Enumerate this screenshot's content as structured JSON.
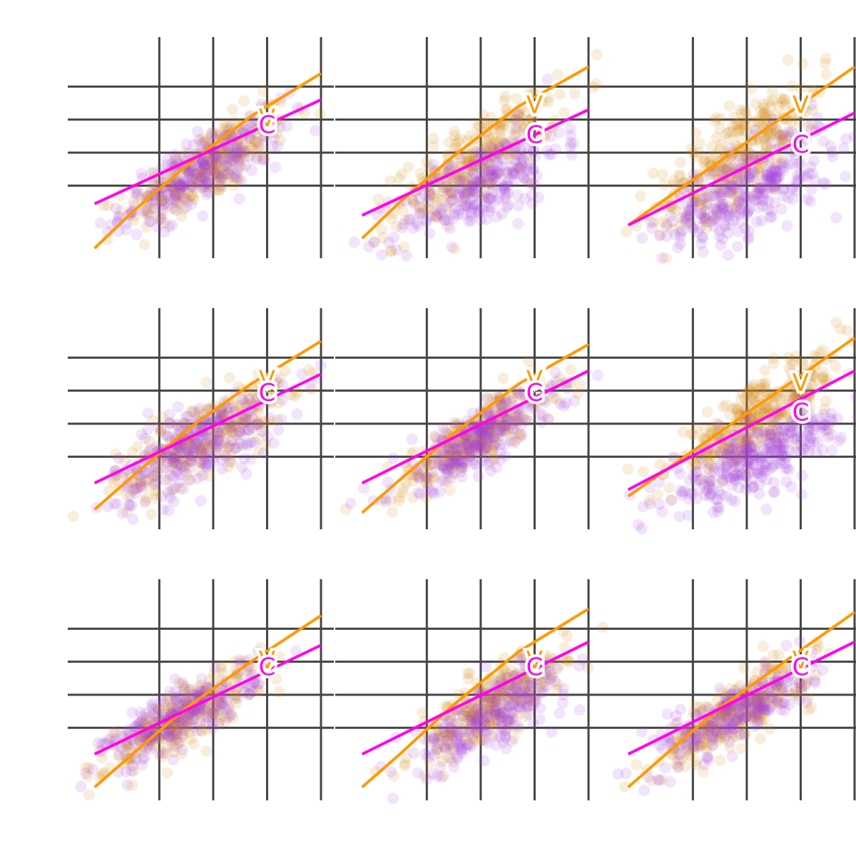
{
  "chart_data": {
    "type": "scatter",
    "layout": "3x3 facet grid",
    "title": "",
    "xlabel": "",
    "ylabel": "",
    "grid": true,
    "legend": "none",
    "xlim": [
      -1.5,
      3.0
    ],
    "ylim": [
      -2.2,
      4.5
    ],
    "x_grid": [
      0,
      1,
      2,
      3
    ],
    "y_grid": [
      0,
      1,
      2,
      3
    ],
    "colors": {
      "series_v_points": "#d4870b",
      "series_c_points": "#a040dc",
      "series_v_line": "#ff9900",
      "series_c_line": "#ff00ee",
      "grid": "#444444"
    },
    "series_keys": [
      "v",
      "c"
    ],
    "panels": [
      {
        "v": {
          "mean_x": 0.9,
          "slope_points": 0.95,
          "intercept_points": 0.6,
          "spread": 0.55,
          "n": 260,
          "x_sd": 0.75
        },
        "c": {
          "mean_x": 0.8,
          "slope_points": 0.85,
          "intercept_points": 0.45,
          "spread": 0.5,
          "n": 260,
          "x_sd": 0.75
        },
        "fit": {
          "v": {
            "x": [
              -1.2,
              -0.5,
              0.5,
              1.7,
              3.0
            ],
            "y": [
              -1.9,
              -0.8,
              0.6,
              2.1,
              3.4
            ]
          },
          "c": {
            "x": [
              -1.2,
              3.0
            ],
            "y": [
              -0.55,
              2.6
            ]
          }
        },
        "labels": [
          {
            "text": "V",
            "series": "v",
            "x": 2.0,
            "y": 2.0
          },
          {
            "text": "C",
            "series": "c",
            "x": 2.0,
            "y": 1.8
          }
        ]
      },
      {
        "v": {
          "mean_x": 0.9,
          "slope_points": 1.05,
          "intercept_points": 0.8,
          "spread": 0.6,
          "n": 260,
          "x_sd": 0.75
        },
        "c": {
          "mean_x": 1.0,
          "slope_points": 0.8,
          "intercept_points": 0.0,
          "spread": 0.65,
          "n": 260,
          "x_sd": 0.75
        },
        "fit": {
          "v": {
            "x": [
              -1.2,
              -0.5,
              0.5,
              1.7,
              3.0
            ],
            "y": [
              -1.6,
              -0.5,
              0.9,
              2.4,
              3.6
            ]
          },
          "c": {
            "x": [
              -1.2,
              3.0
            ],
            "y": [
              -0.9,
              2.3
            ]
          }
        },
        "labels": [
          {
            "text": "V",
            "series": "v",
            "x": 2.0,
            "y": 2.4
          },
          {
            "text": "C",
            "series": "c",
            "x": 2.0,
            "y": 1.5
          }
        ]
      },
      {
        "v": {
          "mean_x": 0.9,
          "slope_points": 1.1,
          "intercept_points": 1.05,
          "spread": 0.7,
          "n": 300,
          "x_sd": 0.8
        },
        "c": {
          "mean_x": 1.0,
          "slope_points": 0.75,
          "intercept_points": -0.2,
          "spread": 0.7,
          "n": 300,
          "x_sd": 0.8
        },
        "fit": {
          "v": {
            "x": [
              -1.2,
              3.0
            ],
            "y": [
              -1.2,
              3.6
            ]
          },
          "c": {
            "x": [
              -1.2,
              3.0
            ],
            "y": [
              -1.2,
              2.2
            ]
          }
        },
        "labels": [
          {
            "text": "V",
            "series": "v",
            "x": 2.0,
            "y": 2.4
          },
          {
            "text": "C",
            "series": "c",
            "x": 2.0,
            "y": 1.2
          }
        ]
      },
      {
        "v": {
          "mean_x": 0.8,
          "slope_points": 0.95,
          "intercept_points": 0.6,
          "spread": 0.55,
          "n": 260,
          "x_sd": 0.8
        },
        "c": {
          "mean_x": 0.7,
          "slope_points": 0.75,
          "intercept_points": 0.35,
          "spread": 0.6,
          "n": 280,
          "x_sd": 0.8
        },
        "fit": {
          "v": {
            "x": [
              -1.2,
              -0.5,
              0.5,
              1.7,
              3.0
            ],
            "y": [
              -1.6,
              -0.6,
              0.8,
              2.2,
              3.5
            ]
          },
          "c": {
            "x": [
              -1.2,
              3.0
            ],
            "y": [
              -0.8,
              2.5
            ]
          }
        },
        "labels": [
          {
            "text": "V",
            "series": "v",
            "x": 2.0,
            "y": 2.3
          },
          {
            "text": "C",
            "series": "c",
            "x": 2.0,
            "y": 1.9
          }
        ]
      },
      {
        "v": {
          "mean_x": 0.9,
          "slope_points": 1.0,
          "intercept_points": 0.6,
          "spread": 0.45,
          "n": 260,
          "x_sd": 0.75
        },
        "c": {
          "mean_x": 0.9,
          "slope_points": 0.85,
          "intercept_points": 0.45,
          "spread": 0.45,
          "n": 260,
          "x_sd": 0.75
        },
        "fit": {
          "v": {
            "x": [
              -1.2,
              -0.5,
              0.5,
              1.7,
              3.0
            ],
            "y": [
              -1.7,
              -0.7,
              0.7,
              2.2,
              3.4
            ]
          },
          "c": {
            "x": [
              -1.2,
              3.0
            ],
            "y": [
              -0.8,
              2.6
            ]
          }
        },
        "labels": [
          {
            "text": "V",
            "series": "v",
            "x": 2.0,
            "y": 2.3
          },
          {
            "text": "C",
            "series": "c",
            "x": 2.0,
            "y": 1.9
          }
        ]
      },
      {
        "v": {
          "mean_x": 1.2,
          "slope_points": 1.0,
          "intercept_points": 1.2,
          "spread": 0.5,
          "n": 320,
          "x_sd": 0.8
        },
        "c": {
          "mean_x": 1.2,
          "slope_points": 0.75,
          "intercept_points": 0.0,
          "spread": 0.5,
          "n": 320,
          "x_sd": 0.8
        },
        "fit": {
          "v": {
            "x": [
              -1.2,
              3.0
            ],
            "y": [
              -1.2,
              3.6
            ]
          },
          "c": {
            "x": [
              -1.2,
              3.0
            ],
            "y": [
              -1.0,
              2.6
            ]
          }
        },
        "labels": [
          {
            "text": "V",
            "series": "v",
            "x": 2.0,
            "y": 2.2
          },
          {
            "text": "C",
            "series": "c",
            "x": 2.0,
            "y": 1.3
          }
        ]
      },
      {
        "v": {
          "mean_x": 0.4,
          "slope_points": 0.95,
          "intercept_points": 0.3,
          "spread": 0.45,
          "n": 260,
          "x_sd": 0.7
        },
        "c": {
          "mean_x": 0.4,
          "slope_points": 0.85,
          "intercept_points": 0.35,
          "spread": 0.45,
          "n": 240,
          "x_sd": 0.7
        },
        "fit": {
          "v": {
            "x": [
              -1.2,
              -0.5,
              0.5,
              1.7,
              3.0
            ],
            "y": [
              -1.8,
              -0.8,
              0.6,
              2.0,
              3.4
            ]
          },
          "c": {
            "x": [
              -1.2,
              3.0
            ],
            "y": [
              -0.8,
              2.5
            ]
          }
        },
        "labels": [
          {
            "text": "V",
            "series": "v",
            "x": 2.0,
            "y": 2.0
          },
          {
            "text": "C",
            "series": "c",
            "x": 2.0,
            "y": 1.8
          }
        ]
      },
      {
        "v": {
          "mean_x": 1.2,
          "slope_points": 1.0,
          "intercept_points": 0.7,
          "spread": 0.5,
          "n": 260,
          "x_sd": 0.7
        },
        "c": {
          "mean_x": 1.2,
          "slope_points": 0.85,
          "intercept_points": 0.4,
          "spread": 0.5,
          "n": 240,
          "x_sd": 0.7
        },
        "fit": {
          "v": {
            "x": [
              -1.2,
              -0.5,
              0.5,
              1.7,
              3.0
            ],
            "y": [
              -1.8,
              -0.8,
              0.7,
              2.3,
              3.6
            ]
          },
          "c": {
            "x": [
              -1.2,
              3.0
            ],
            "y": [
              -0.8,
              2.6
            ]
          }
        },
        "labels": [
          {
            "text": "V",
            "series": "v",
            "x": 2.0,
            "y": 2.0
          },
          {
            "text": "C",
            "series": "c",
            "x": 2.0,
            "y": 1.8
          }
        ]
      },
      {
        "v": {
          "mean_x": 0.8,
          "slope_points": 0.95,
          "intercept_points": 0.5,
          "spread": 0.45,
          "n": 260,
          "x_sd": 0.7
        },
        "c": {
          "mean_x": 0.8,
          "slope_points": 0.85,
          "intercept_points": 0.45,
          "spread": 0.45,
          "n": 240,
          "x_sd": 0.7
        },
        "fit": {
          "v": {
            "x": [
              -1.2,
              -0.5,
              0.5,
              1.7,
              3.0
            ],
            "y": [
              -1.8,
              -0.8,
              0.6,
              2.0,
              3.5
            ]
          },
          "c": {
            "x": [
              -1.2,
              3.0
            ],
            "y": [
              -0.8,
              2.6
            ]
          }
        },
        "labels": [
          {
            "text": "V",
            "series": "v",
            "x": 2.0,
            "y": 2.0
          },
          {
            "text": "C",
            "series": "c",
            "x": 2.0,
            "y": 1.8
          }
        ]
      }
    ]
  }
}
